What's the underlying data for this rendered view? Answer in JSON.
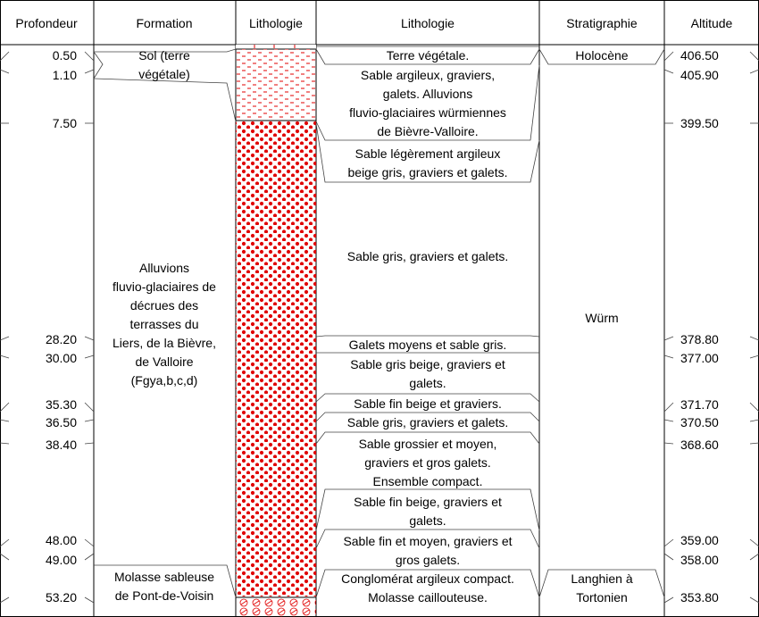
{
  "headers": {
    "profondeur": "Profondeur",
    "formation": "Formation",
    "lithologie_col": "Lithologie",
    "lithologie_desc": "Lithologie",
    "stratigraphie": "Stratigraphie",
    "altitude": "Altitude"
  },
  "depths": [
    {
      "depth": "0.50",
      "altitude": "406.50"
    },
    {
      "depth": "1.10",
      "altitude": "405.90"
    },
    {
      "depth": "7.50",
      "altitude": "399.50"
    },
    {
      "depth": "28.20",
      "altitude": "378.80"
    },
    {
      "depth": "30.00",
      "altitude": "377.00"
    },
    {
      "depth": "35.30",
      "altitude": "371.70"
    },
    {
      "depth": "36.50",
      "altitude": "370.50"
    },
    {
      "depth": "38.40",
      "altitude": "368.60"
    },
    {
      "depth": "48.00",
      "altitude": "359.00"
    },
    {
      "depth": "49.00",
      "altitude": "358.00"
    },
    {
      "depth": "53.20",
      "altitude": "353.80"
    }
  ],
  "formations": [
    {
      "lines": [
        "Sol (terre",
        "végétale)"
      ]
    },
    {
      "lines": [
        "Alluvions",
        "fluvio-glaciaires de",
        "décrues des",
        "terrasses du",
        "Liers, de la Bièvre,",
        "de Valloire",
        "(Fgya,b,c,d)"
      ]
    },
    {
      "lines": [
        "Molasse sableuse",
        "de Pont-de-Voisin"
      ]
    }
  ],
  "lithology_descriptions": [
    {
      "lines": [
        "Terre végétale."
      ]
    },
    {
      "lines": [
        "Sable argileux, graviers,",
        "galets. Alluvions",
        "fluvio-glaciaires würmiennes",
        "de Bièvre-Valloire."
      ]
    },
    {
      "lines": [
        "Sable légèrement argileux",
        "beige gris, graviers et galets."
      ]
    },
    {
      "lines": [
        "Sable gris, graviers et galets."
      ]
    },
    {
      "lines": [
        "Galets moyens et sable gris."
      ]
    },
    {
      "lines": [
        "Sable gris beige, graviers et",
        "galets."
      ]
    },
    {
      "lines": [
        "Sable fin beige et graviers."
      ]
    },
    {
      "lines": [
        "Sable gris, graviers et galets."
      ]
    },
    {
      "lines": [
        "Sable grossier et moyen,",
        "graviers et gros galets.",
        "Ensemble compact."
      ]
    },
    {
      "lines": [
        "Sable fin beige, graviers et",
        "galets."
      ]
    },
    {
      "lines": [
        "Sable fin et moyen, graviers et",
        "gros galets."
      ]
    },
    {
      "lines": [
        "Conglomérat argileux compact.",
        "Molasse caillouteuse."
      ]
    }
  ],
  "stratigraphy": [
    {
      "lines": [
        "Holocène"
      ]
    },
    {
      "lines": [
        "Würm"
      ]
    },
    {
      "lines": [
        "Langhien à",
        "Tortonien"
      ]
    }
  ],
  "colors": {
    "pattern": "#e00000",
    "line": "#000000"
  }
}
